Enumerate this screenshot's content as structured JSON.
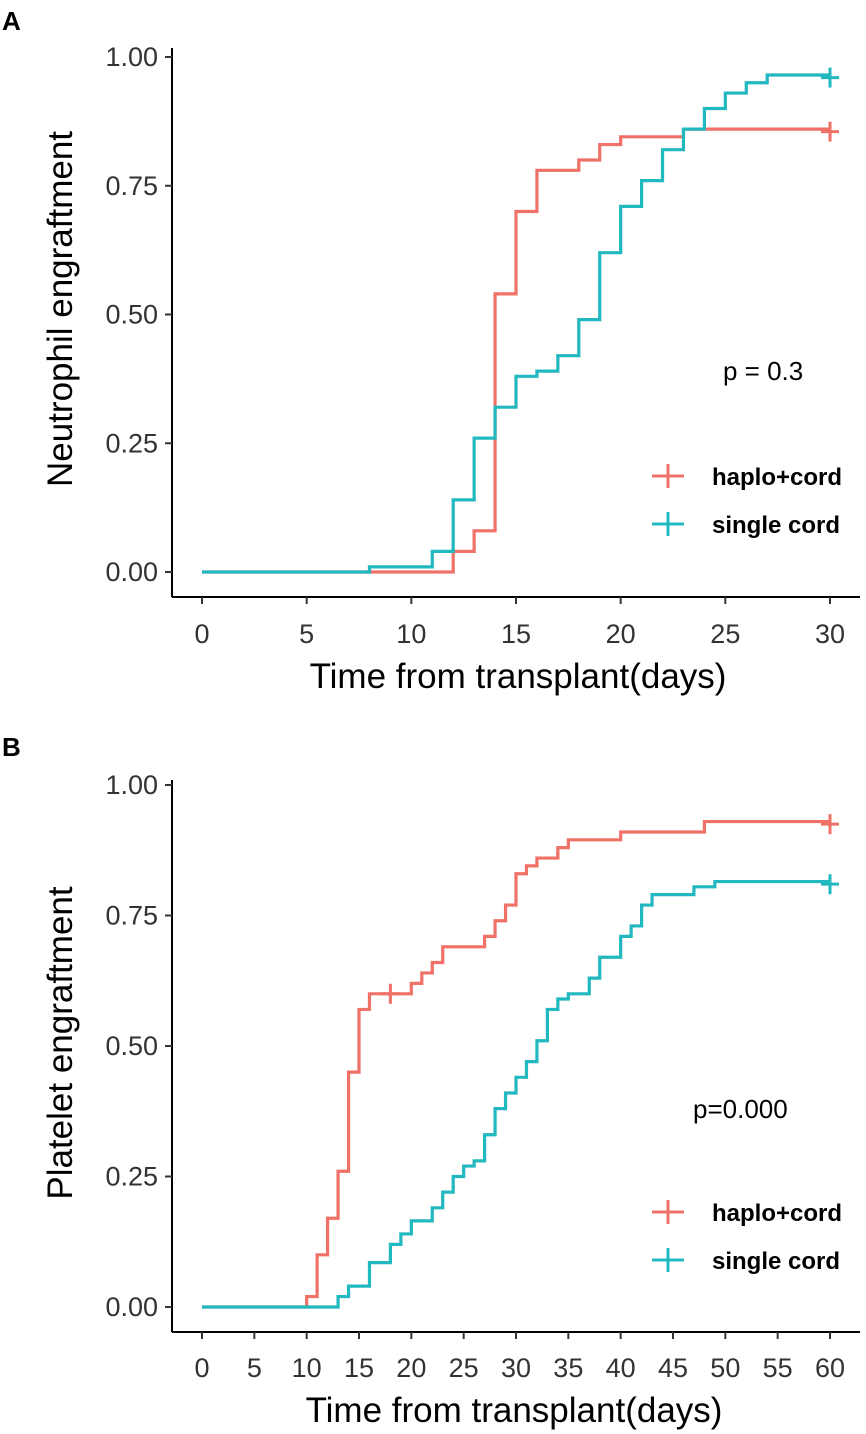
{
  "colors": {
    "haplo": "#F07167",
    "single": "#22B8BF",
    "axis": "#000000"
  },
  "chart_data": [
    {
      "panel": "A",
      "type": "line",
      "step": true,
      "xlabel": "Time from transplant(days)",
      "ylabel": "Neutrophil engraftment",
      "xlim": [
        0,
        30
      ],
      "ylim": [
        0,
        1
      ],
      "xticks": [
        "0",
        "5",
        "10",
        "15",
        "20",
        "25",
        "30"
      ],
      "yticks": [
        "0.00",
        "0.25",
        "0.50",
        "0.75",
        "1.00"
      ],
      "annotation": "p = 0.3",
      "legend_position": "right",
      "series": [
        {
          "name": "haplo+cord",
          "color_key": "haplo",
          "x": [
            0,
            12,
            13,
            14,
            15,
            16,
            18,
            19,
            20,
            23,
            30
          ],
          "y": [
            0,
            0.04,
            0.08,
            0.54,
            0.7,
            0.78,
            0.8,
            0.83,
            0.845,
            0.86,
            0.86
          ],
          "censor_marks": [
            [
              30,
              0.855
            ]
          ]
        },
        {
          "name": "single cord",
          "color_key": "single",
          "x": [
            0,
            8,
            11,
            12,
            13,
            14,
            15,
            16,
            17,
            18,
            19,
            20,
            21,
            22,
            23,
            24,
            25,
            26,
            27,
            30
          ],
          "y": [
            0,
            0.01,
            0.04,
            0.14,
            0.26,
            0.32,
            0.38,
            0.39,
            0.42,
            0.49,
            0.62,
            0.71,
            0.76,
            0.82,
            0.86,
            0.9,
            0.93,
            0.95,
            0.965,
            0.965
          ],
          "censor_marks": [
            [
              30,
              0.96
            ]
          ]
        }
      ]
    },
    {
      "panel": "B",
      "type": "line",
      "step": true,
      "xlabel": "Time from transplant(days)",
      "ylabel": "Platelet engraftment",
      "xlim": [
        0,
        60
      ],
      "ylim": [
        0,
        1
      ],
      "xticks": [
        "0",
        "5",
        "10",
        "15",
        "20",
        "25",
        "30",
        "35",
        "40",
        "45",
        "50",
        "55",
        "60"
      ],
      "yticks": [
        "0.00",
        "0.25",
        "0.50",
        "0.75",
        "1.00"
      ],
      "annotation": "p=0.000",
      "legend_position": "right",
      "series": [
        {
          "name": "haplo+cord",
          "color_key": "haplo",
          "x": [
            0,
            10,
            11,
            12,
            13,
            14,
            15,
            16,
            18,
            20,
            21,
            22,
            23,
            24,
            27,
            28,
            29,
            30,
            31,
            32,
            34,
            35,
            40,
            48,
            60
          ],
          "y": [
            0,
            0.02,
            0.1,
            0.17,
            0.26,
            0.45,
            0.57,
            0.6,
            0.6,
            0.62,
            0.64,
            0.66,
            0.69,
            0.69,
            0.71,
            0.74,
            0.77,
            0.83,
            0.845,
            0.86,
            0.88,
            0.895,
            0.91,
            0.93,
            0.93
          ],
          "censor_marks": [
            [
              18,
              0.6
            ],
            [
              60,
              0.925
            ]
          ]
        },
        {
          "name": "single cord",
          "color_key": "single",
          "x": [
            0,
            13,
            14,
            16,
            18,
            19,
            20,
            22,
            23,
            24,
            25,
            26,
            27,
            28,
            29,
            30,
            31,
            32,
            33,
            34,
            35,
            37,
            38,
            40,
            41,
            42,
            43,
            47,
            49,
            60
          ],
          "y": [
            0,
            0.02,
            0.04,
            0.085,
            0.12,
            0.14,
            0.165,
            0.19,
            0.22,
            0.25,
            0.27,
            0.28,
            0.33,
            0.38,
            0.41,
            0.44,
            0.47,
            0.51,
            0.57,
            0.59,
            0.6,
            0.63,
            0.67,
            0.71,
            0.73,
            0.77,
            0.79,
            0.805,
            0.815,
            0.815
          ],
          "censor_marks": [
            [
              60,
              0.81
            ]
          ]
        }
      ]
    }
  ]
}
